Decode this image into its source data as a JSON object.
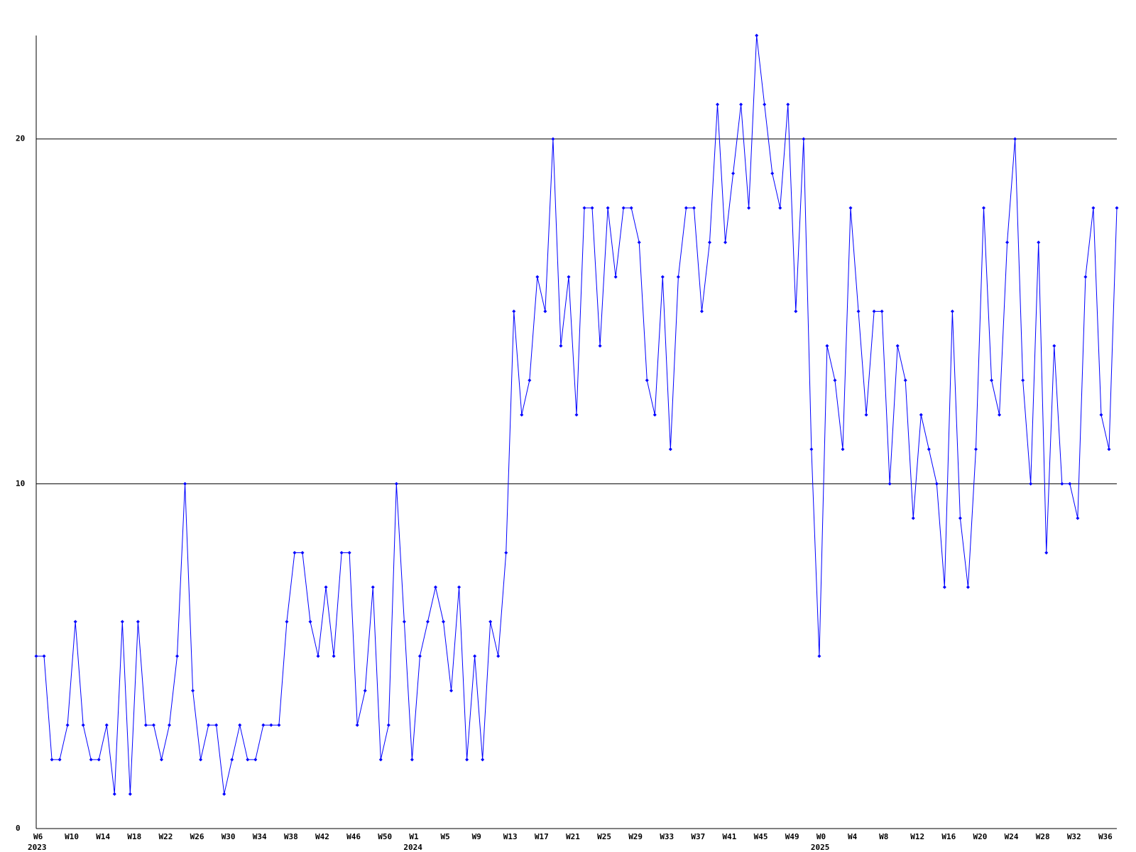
{
  "chart_data": {
    "type": "line",
    "categories": [
      "W6",
      null,
      null,
      null,
      "W10",
      null,
      null,
      null,
      "W14",
      null,
      null,
      null,
      "W18",
      null,
      null,
      null,
      "W22",
      null,
      null,
      null,
      "W26",
      null,
      null,
      null,
      "W30",
      null,
      null,
      null,
      "W34",
      null,
      null,
      null,
      "W38",
      null,
      null,
      null,
      "W42",
      null,
      null,
      null,
      "W46",
      null,
      null,
      null,
      "W50",
      null,
      null,
      null,
      "W1",
      null,
      null,
      null,
      "W5",
      null,
      null,
      null,
      "W9",
      null,
      null,
      null,
      "W13",
      null,
      null,
      null,
      "W17",
      null,
      null,
      null,
      "W21",
      null,
      null,
      null,
      "W25",
      null,
      null,
      null,
      "W29",
      null,
      null,
      null,
      "W33",
      null,
      null,
      null,
      "W37",
      null,
      null,
      null,
      "W41",
      null,
      null,
      null,
      "W45",
      null,
      null,
      null,
      "W49",
      null,
      null,
      null,
      "W0",
      null,
      null,
      null,
      "W4",
      null,
      null,
      null,
      "W8",
      null,
      null,
      null,
      "W12",
      null,
      null,
      null,
      "W16",
      null,
      null,
      null,
      "W20",
      null,
      null,
      null,
      "W24",
      null,
      null,
      null,
      "W28",
      null,
      null,
      null,
      "W32",
      null,
      null,
      null,
      "W36",
      null,
      null
    ],
    "category_years": [
      "2023",
      null,
      null,
      null,
      null,
      null,
      null,
      null,
      null,
      null,
      null,
      null,
      null,
      null,
      null,
      null,
      null,
      null,
      null,
      null,
      null,
      null,
      null,
      null,
      null,
      null,
      null,
      null,
      null,
      null,
      null,
      null,
      null,
      null,
      null,
      null,
      null,
      null,
      null,
      null,
      null,
      null,
      null,
      null,
      null,
      null,
      null,
      null,
      "2024",
      null,
      null,
      null,
      null,
      null,
      null,
      null,
      null,
      null,
      null,
      null,
      null,
      null,
      null,
      null,
      null,
      null,
      null,
      null,
      null,
      null,
      null,
      null,
      null,
      null,
      null,
      null,
      null,
      null,
      null,
      null,
      null,
      null,
      null,
      null,
      null,
      null,
      null,
      null,
      null,
      null,
      null,
      null,
      null,
      null,
      null,
      null,
      null,
      null,
      null,
      null,
      "2025",
      null,
      null,
      null,
      null,
      null,
      null,
      null,
      null,
      null,
      null,
      null,
      null,
      null,
      null,
      null,
      null,
      null,
      null,
      null,
      null,
      null,
      null,
      null,
      null,
      null,
      null,
      null,
      null,
      null,
      null,
      null,
      null,
      null,
      null,
      null,
      null,
      null,
      null
    ],
    "series": [
      {
        "color": "#0000ff",
        "values": [
          5,
          5,
          2,
          2,
          3,
          6,
          3,
          2,
          2,
          3,
          1,
          6,
          1,
          6,
          3,
          3,
          2,
          3,
          5,
          10,
          4,
          2,
          3,
          3,
          1,
          2,
          3,
          2,
          2,
          3,
          3,
          3,
          6,
          8,
          8,
          6,
          5,
          7,
          5,
          8,
          8,
          3,
          4,
          7,
          2,
          3,
          10,
          6,
          2,
          5,
          6,
          7,
          6,
          4,
          7,
          2,
          5,
          2,
          6,
          5,
          8,
          15,
          12,
          13,
          16,
          15,
          20,
          14,
          16,
          12,
          18,
          18,
          14,
          18,
          16,
          18,
          18,
          17,
          13,
          12,
          16,
          11,
          16,
          18,
          18,
          15,
          17,
          21,
          17,
          19,
          21,
          18,
          23,
          21,
          19,
          18,
          21,
          15,
          20,
          11,
          5,
          14,
          13,
          11,
          18,
          15,
          12,
          15,
          15,
          10,
          14,
          13,
          9,
          12,
          11,
          10,
          7,
          15,
          9,
          7,
          11,
          18,
          13,
          12,
          17,
          20,
          13,
          10,
          17,
          8,
          14,
          10,
          10,
          9,
          16,
          18,
          12,
          11,
          18
        ]
      }
    ],
    "ylim": [
      0,
      23
    ],
    "yticks": [
      0,
      10,
      20
    ],
    "grid": true
  }
}
